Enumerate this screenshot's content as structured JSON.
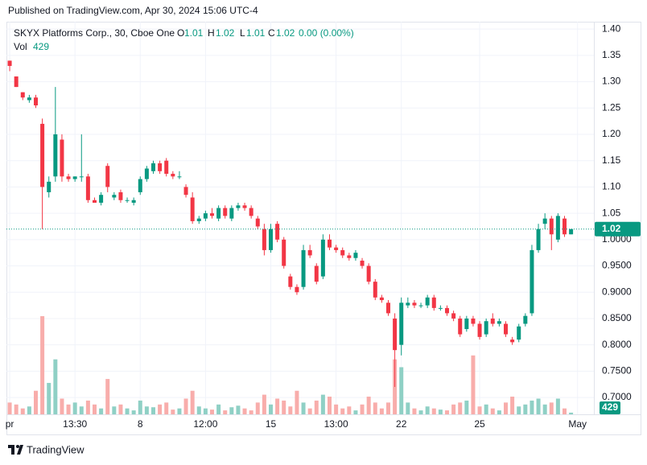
{
  "header": "Published on TradingView.com, Apr 30, 2024 15:06 UTC-4",
  "footer": "TradingView",
  "chart_data": {
    "type": "candlestick",
    "symbol": "SKYX Platforms Corp., 30, Cboe One",
    "legend_labels": {
      "open": "O",
      "high": "H",
      "low": "L",
      "close": "C",
      "volume": "Vol"
    },
    "change_label": "0.00 (0.00%)",
    "up_color": "#089981",
    "down_color": "#f23645",
    "volume_up_color": "#8fd0c5",
    "volume_down_color": "#f8adab",
    "grid": true,
    "ylim": [
      0.668,
      1.414
    ],
    "yticks": [
      {
        "value": 1.4,
        "label": "1.40"
      },
      1.35,
      {
        "value": 1.3,
        "label": "1.30"
      },
      1.25,
      {
        "value": 1.2,
        "label": "1.20"
      },
      1.15,
      {
        "value": 1.1,
        "label": "1.10"
      },
      1.05,
      {
        "value": 1,
        "label": "1.0000"
      },
      {
        "value": 0.95,
        "label": "0.9500"
      },
      {
        "value": 0.9,
        "label": "0.9000"
      },
      {
        "value": 0.85,
        "label": "0.8500"
      },
      {
        "value": 0.8,
        "label": "0.8000"
      },
      {
        "value": 0.75,
        "label": "0.7500"
      },
      {
        "value": 0.7,
        "label": "0.7000"
      }
    ],
    "volume_ylim": [
      0,
      100000
    ],
    "categories": [
      "pr",
      null,
      null,
      null,
      null,
      null,
      null,
      null,
      null,
      null,
      "13:30",
      null,
      null,
      null,
      null,
      null,
      null,
      null,
      null,
      null,
      "8",
      null,
      null,
      null,
      null,
      null,
      null,
      null,
      null,
      null,
      "12:00",
      null,
      null,
      null,
      null,
      null,
      null,
      null,
      null,
      null,
      "15",
      null,
      null,
      null,
      null,
      null,
      null,
      null,
      null,
      null,
      "13:00",
      null,
      null,
      null,
      null,
      null,
      null,
      null,
      null,
      null,
      "22",
      null,
      null,
      null,
      null,
      null,
      null,
      null,
      null,
      null,
      null,
      null,
      "25",
      null,
      null,
      null,
      null,
      null,
      null,
      null,
      null,
      null,
      null,
      null,
      null,
      null,
      null,
      "May",
      null,
      null
    ],
    "open": [
      1.34,
      1.31,
      1.28,
      1.265,
      1.27,
      1.22,
      1.09,
      1.12,
      1.19,
      1.12,
      1.115,
      1.12,
      1.12,
      1.075,
      1.07,
      1.14,
      1.08,
      1.09,
      1.075,
      1.07,
      1.09,
      1.115,
      1.13,
      1.145,
      1.15,
      1.125,
      1.12,
      1.1,
      1.08,
      1.035,
      1.04,
      1.05,
      1.04,
      1.06,
      1.04,
      1.06,
      1.065,
      1.06,
      1.04,
      1.02,
      0.98,
      1.03,
      1.0,
      0.93,
      0.91,
      0.91,
      0.98,
      0.95,
      0.93,
      1.0,
      0.985,
      0.98,
      0.97,
      0.965,
      0.96,
      0.95,
      0.92,
      0.89,
      0.88,
      0.85,
      0.8,
      0.875,
      0.88,
      0.875,
      0.875,
      0.89,
      0.87,
      0.87,
      0.86,
      0.85,
      0.83,
      0.85,
      0.84,
      0.82,
      0.85,
      0.84,
      0.84,
      0.81,
      0.81,
      0.84,
      0.86,
      0.98,
      1.03,
      1.04,
      1.0,
      1.04,
      1.01,
      null,
      null,
      null
    ],
    "high": [
      1.34,
      1.31,
      1.28,
      1.275,
      1.275,
      1.23,
      1.12,
      1.29,
      1.2,
      1.125,
      1.12,
      1.2,
      1.125,
      1.08,
      1.09,
      1.145,
      1.09,
      1.095,
      1.08,
      1.08,
      1.12,
      1.14,
      1.15,
      1.15,
      1.155,
      1.13,
      1.13,
      1.105,
      1.09,
      1.045,
      1.055,
      1.06,
      1.065,
      1.065,
      1.065,
      1.07,
      1.07,
      1.065,
      1.045,
      1.03,
      1.03,
      1.035,
      1.005,
      0.935,
      0.915,
      0.99,
      0.99,
      0.955,
      1.01,
      1.01,
      0.99,
      0.985,
      0.975,
      0.98,
      0.965,
      0.955,
      0.925,
      0.895,
      0.885,
      0.86,
      0.89,
      0.89,
      0.885,
      0.88,
      0.895,
      0.895,
      0.875,
      0.875,
      0.865,
      0.855,
      0.855,
      0.855,
      0.845,
      0.85,
      0.86,
      0.85,
      0.845,
      0.815,
      0.84,
      0.86,
      0.99,
      1.03,
      1.05,
      1.045,
      1.05,
      1.045,
      1.02,
      null,
      null,
      null
    ],
    "low": [
      1.32,
      1.29,
      1.265,
      1.26,
      1.25,
      1.02,
      1.08,
      1.11,
      1.11,
      1.11,
      1.11,
      1.11,
      1.07,
      1.07,
      1.065,
      1.09,
      1.075,
      1.07,
      1.07,
      1.065,
      1.085,
      1.11,
      1.125,
      1.125,
      1.12,
      1.115,
      1.115,
      1.08,
      1.03,
      1.03,
      1.035,
      1.04,
      1.035,
      1.04,
      1.035,
      1.055,
      1.055,
      1.04,
      1.02,
      0.97,
      0.975,
      0.995,
      0.945,
      0.905,
      0.895,
      0.905,
      0.965,
      0.915,
      0.925,
      0.98,
      0.975,
      0.965,
      0.96,
      0.96,
      0.945,
      0.915,
      0.885,
      0.88,
      0.855,
      0.72,
      0.78,
      0.87,
      0.87,
      0.87,
      0.87,
      0.865,
      0.865,
      0.855,
      0.845,
      0.815,
      0.825,
      0.835,
      0.81,
      0.815,
      0.835,
      0.835,
      0.815,
      0.8,
      0.805,
      0.835,
      0.855,
      0.975,
      1.02,
      0.98,
      0.995,
      1.005,
      1.01,
      null,
      null,
      null
    ],
    "close": [
      1.33,
      1.29,
      1.27,
      1.27,
      1.255,
      1.1,
      1.11,
      1.2,
      1.12,
      1.115,
      1.12,
      1.12,
      1.075,
      1.07,
      1.085,
      1.1,
      1.085,
      1.075,
      1.075,
      1.075,
      1.115,
      1.135,
      1.145,
      1.13,
      1.125,
      1.12,
      1.12,
      1.085,
      1.035,
      1.04,
      1.05,
      1.045,
      1.06,
      1.045,
      1.06,
      1.065,
      1.06,
      1.045,
      1.025,
      0.98,
      1.02,
      1.0,
      0.95,
      0.91,
      0.9,
      0.98,
      0.97,
      0.92,
      1.0,
      0.985,
      0.98,
      0.97,
      0.965,
      0.975,
      0.95,
      0.92,
      0.89,
      0.885,
      0.86,
      0.79,
      0.88,
      0.88,
      0.875,
      0.875,
      0.89,
      0.87,
      0.87,
      0.86,
      0.85,
      0.82,
      0.85,
      0.84,
      0.815,
      0.845,
      0.84,
      0.845,
      0.82,
      0.805,
      0.835,
      0.855,
      0.98,
      1.02,
      1.04,
      1.01,
      1.045,
      1.01,
      1.02,
      null,
      null,
      null
    ],
    "volume": [
      3000,
      2500,
      1500,
      2000,
      6000,
      25000,
      8000,
      14000,
      4000,
      2500,
      3000,
      2000,
      3500,
      2500,
      1500,
      9000,
      2000,
      2500,
      1500,
      1000,
      3500,
      2000,
      1800,
      2500,
      3000,
      1200,
      1500,
      4000,
      6000,
      2000,
      1500,
      1200,
      2500,
      1000,
      1800,
      2200,
      1500,
      1000,
      3000,
      5000,
      2500,
      4000,
      3500,
      2000,
      6000,
      3000,
      1500,
      3500,
      5000,
      4500,
      2500,
      1500,
      2000,
      1000,
      2500,
      4500,
      3000,
      1500,
      3000,
      14000,
      12000,
      3000,
      1500,
      1000,
      2000,
      1500,
      1200,
      1000,
      2500,
      3000,
      3500,
      15000,
      2000,
      2500,
      1500,
      1000,
      3000,
      4500,
      2000,
      2500,
      3500,
      4000,
      2500,
      3000,
      4000,
      1500,
      429,
      null,
      null,
      null
    ]
  }
}
